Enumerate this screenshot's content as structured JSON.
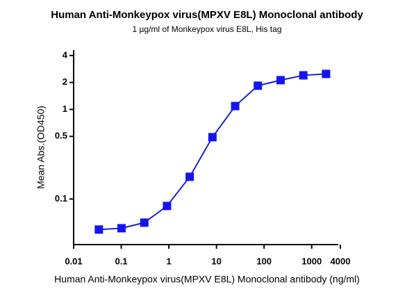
{
  "chart_data": {
    "type": "line",
    "title": "Human Anti-Monkeypox virus(MPXV E8L) Monoclonal antibody",
    "subtitle": "1 µg/ml of Monkeypox virus E8L, His tag",
    "x_label": "Human Anti-Monkeypox virus(MPXV E8L) Monoclonal antibody (ng/ml)",
    "y_label": "Mean Abs.(OD450)",
    "x": [
      0.0339,
      0.1016,
      0.3048,
      0.9145,
      2.743,
      8.23,
      24.69,
      74.07,
      222.2,
      666.7,
      2000
    ],
    "series": [
      {
        "name": "OD450",
        "color": "#1f1fd6",
        "marker_color": "#1414f0",
        "values": [
          0.0456,
          0.0472,
          0.0545,
          0.0836,
          0.177,
          0.49,
          1.09,
          1.84,
          2.12,
          2.4,
          2.49
        ]
      }
    ],
    "xscale": "log",
    "yscale": "log",
    "xlim": [
      0.01,
      4000
    ],
    "xticks": [
      0.01,
      0.1,
      1,
      10,
      100,
      1000,
      4000
    ],
    "ylim": [
      0.031,
      4.6
    ],
    "yticks": [
      0.1,
      0.5,
      1,
      2,
      4
    ],
    "grid": false
  }
}
